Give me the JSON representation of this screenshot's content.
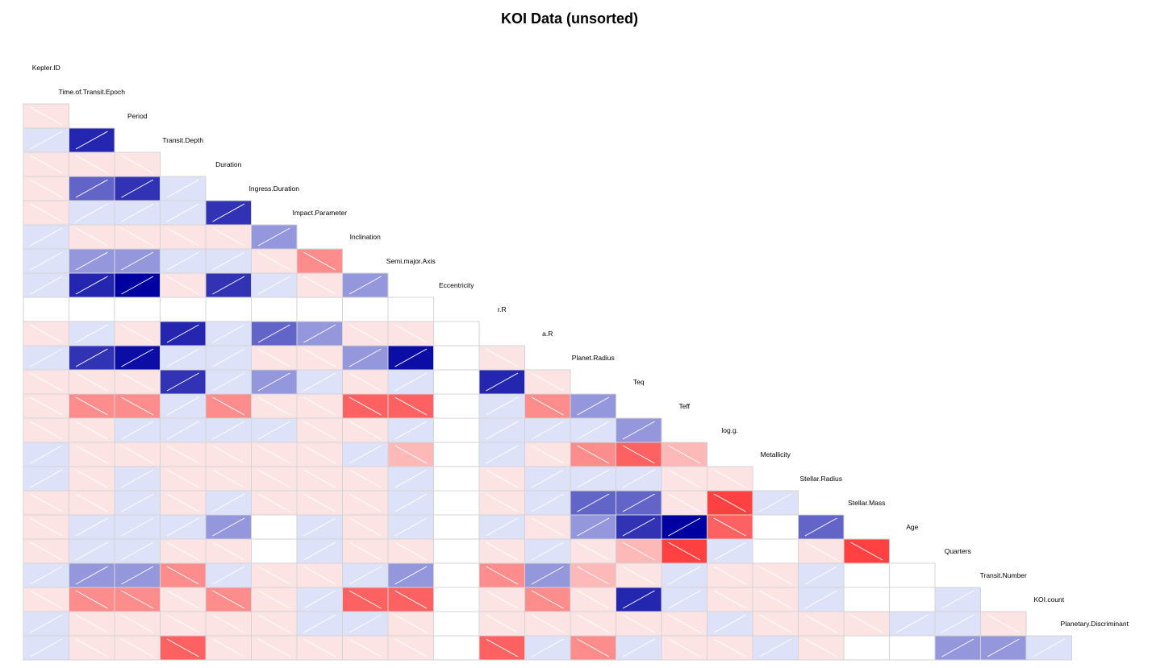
{
  "chart_data": {
    "type": "heatmap",
    "title": "KOI Data (unsorted)",
    "variables": [
      "Kepler.ID",
      "Time.of.Transit.Epoch",
      "Period",
      "Transit.Depth",
      "Duration",
      "Ingress.Duration",
      "Impact.Parameter",
      "Inclination",
      "Semi.major.Axis",
      "Eccentricity",
      "r.R",
      "a.R",
      "Planet.Radius",
      "Teq",
      "Teff",
      "log.g.",
      "Metallicity",
      "Stellar.Radius",
      "Stellar.Mass",
      "Age",
      "Quarters",
      "Transit.Number",
      "KOI.count",
      "Planetary.Discriminant"
    ],
    "value_range": [
      -1,
      1
    ],
    "colors": {
      "positive": "#0000a0",
      "negative": "#ff2020",
      "zero": "#ffffff",
      "border": "#d3d3d3",
      "hatch": "#ffffff"
    },
    "lower_triangle": [
      [],
      [
        -0.1
      ],
      [
        0.1,
        0.85
      ],
      [
        -0.1,
        -0.1,
        -0.1
      ],
      [
        -0.1,
        0.6,
        0.8,
        0.1
      ],
      [
        -0.1,
        0.1,
        0.1,
        0.1,
        0.8
      ],
      [
        0.1,
        -0.1,
        -0.1,
        -0.1,
        -0.1,
        0.4
      ],
      [
        0.1,
        0.4,
        0.4,
        0.1,
        0.1,
        -0.1,
        -0.5
      ],
      [
        0.1,
        0.85,
        1.0,
        -0.1,
        0.8,
        0.1,
        -0.1,
        0.4
      ],
      [
        0,
        0,
        0,
        0,
        0,
        0,
        0,
        0,
        0
      ],
      [
        -0.1,
        0.1,
        -0.1,
        0.85,
        0.1,
        0.6,
        0.4,
        -0.1,
        -0.1,
        0
      ],
      [
        0.1,
        0.8,
        0.95,
        0.1,
        0.1,
        -0.1,
        -0.1,
        0.4,
        0.95,
        0,
        -0.1
      ],
      [
        -0.1,
        -0.1,
        -0.1,
        0.8,
        0.1,
        0.4,
        0.1,
        -0.1,
        0.1,
        0,
        0.85,
        -0.1
      ],
      [
        -0.1,
        -0.5,
        -0.5,
        0.1,
        -0.5,
        -0.1,
        -0.1,
        -0.7,
        -0.7,
        0,
        0.1,
        -0.5,
        0.4
      ],
      [
        -0.1,
        -0.1,
        0.1,
        0.1,
        0.1,
        0.1,
        -0.1,
        -0.1,
        0.1,
        0,
        0.1,
        0.1,
        0.1,
        0.4
      ],
      [
        0.1,
        -0.1,
        -0.1,
        -0.1,
        -0.1,
        -0.1,
        -0.1,
        0.1,
        -0.3,
        0,
        0.1,
        -0.1,
        -0.5,
        -0.7,
        -0.3
      ],
      [
        0.1,
        -0.1,
        0.1,
        -0.1,
        -0.1,
        -0.1,
        -0.1,
        -0.1,
        0.1,
        0,
        -0.1,
        0.1,
        0.1,
        0.1,
        -0.1,
        -0.1
      ],
      [
        -0.1,
        -0.1,
        0.1,
        -0.1,
        0.1,
        -0.1,
        -0.1,
        -0.1,
        0.1,
        0,
        -0.1,
        0.1,
        0.6,
        0.6,
        -0.1,
        -0.85,
        0.1
      ],
      [
        -0.1,
        0.1,
        0.1,
        0.1,
        0.4,
        0,
        0.1,
        -0.1,
        0.1,
        0,
        0.1,
        -0.1,
        0.4,
        0.8,
        1.0,
        -0.7,
        0,
        0.6
      ],
      [
        -0.1,
        0.1,
        0.1,
        -0.1,
        -0.1,
        0,
        0.1,
        -0.1,
        -0.1,
        0,
        -0.1,
        0.1,
        -0.1,
        -0.3,
        -0.85,
        0.1,
        0,
        -0.1,
        -0.85
      ],
      [
        0.1,
        0.4,
        0.4,
        -0.5,
        0.1,
        -0.1,
        -0.1,
        0.1,
        0.4,
        0,
        -0.5,
        0.4,
        -0.3,
        -0.1,
        0.1,
        -0.1,
        -0.1,
        0.1,
        0,
        0
      ],
      [
        -0.1,
        -0.5,
        -0.5,
        -0.1,
        -0.5,
        -0.1,
        0.1,
        -0.7,
        -0.7,
        0,
        -0.1,
        -0.5,
        -0.1,
        0.85,
        0.1,
        -0.1,
        -0.1,
        0.1,
        0,
        0,
        0.1
      ],
      [
        0.1,
        -0.1,
        -0.1,
        -0.1,
        -0.1,
        -0.1,
        0.1,
        0.1,
        -0.1,
        0,
        -0.1,
        -0.1,
        -0.1,
        -0.1,
        -0.1,
        0.1,
        -0.1,
        -0.1,
        -0.1,
        0.1,
        0.1,
        -0.1
      ],
      [
        0.1,
        -0.1,
        -0.1,
        -0.7,
        -0.1,
        -0.1,
        -0.1,
        -0.1,
        -0.1,
        0,
        -0.7,
        0.1,
        -0.5,
        0.1,
        -0.1,
        -0.1,
        0.1,
        -0.1,
        0,
        0,
        0.4,
        0.4,
        0.1
      ]
    ]
  }
}
